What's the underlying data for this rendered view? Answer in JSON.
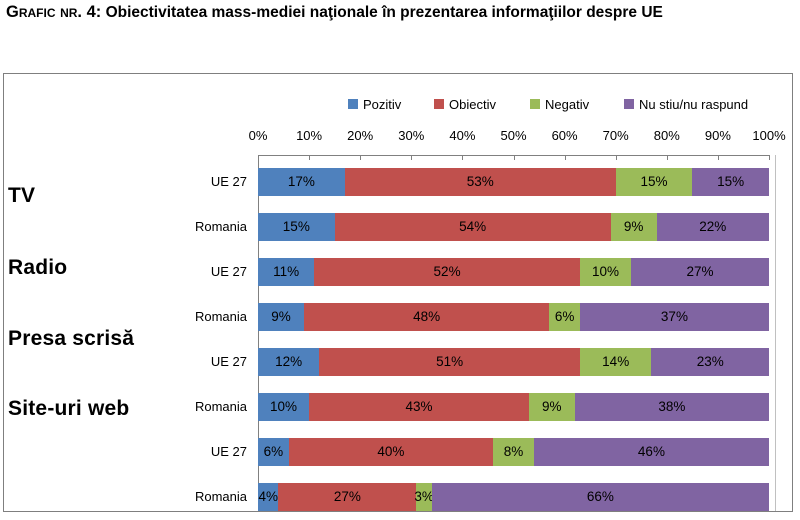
{
  "title": {
    "prefix": "Grafic nr. 4:",
    "text": " Obiectivitatea mass-mediei naţionale în prezentarea informaţiilor despre UE"
  },
  "chart_data": {
    "type": "bar",
    "stacked": true,
    "orientation": "horizontal",
    "groups": [
      "TV",
      "Radio",
      "Presa scrisă",
      "Site-uri web"
    ],
    "categories": [
      "UE 27",
      "Romania",
      "UE 27",
      "Romania",
      "UE 27",
      "Romania",
      "UE 27",
      "Romania"
    ],
    "series": [
      {
        "name": "Pozitiv",
        "color": "#4F81BD",
        "values": [
          17,
          15,
          11,
          9,
          12,
          10,
          6,
          4
        ]
      },
      {
        "name": "Obiectiv",
        "color": "#C0504D",
        "values": [
          53,
          54,
          52,
          48,
          51,
          43,
          40,
          27
        ]
      },
      {
        "name": "Negativ",
        "color": "#9BBB59",
        "values": [
          15,
          9,
          10,
          6,
          14,
          9,
          8,
          3
        ]
      },
      {
        "name": "Nu stiu/nu raspund",
        "color": "#8064A2",
        "values": [
          15,
          22,
          27,
          37,
          23,
          38,
          46,
          66
        ]
      }
    ],
    "x_ticks": [
      "0%",
      "10%",
      "20%",
      "30%",
      "40%",
      "50%",
      "60%",
      "70%",
      "80%",
      "90%",
      "100%"
    ],
    "xlim": [
      0,
      100
    ],
    "value_suffix": "%",
    "legend_position": "top",
    "grid": false
  }
}
